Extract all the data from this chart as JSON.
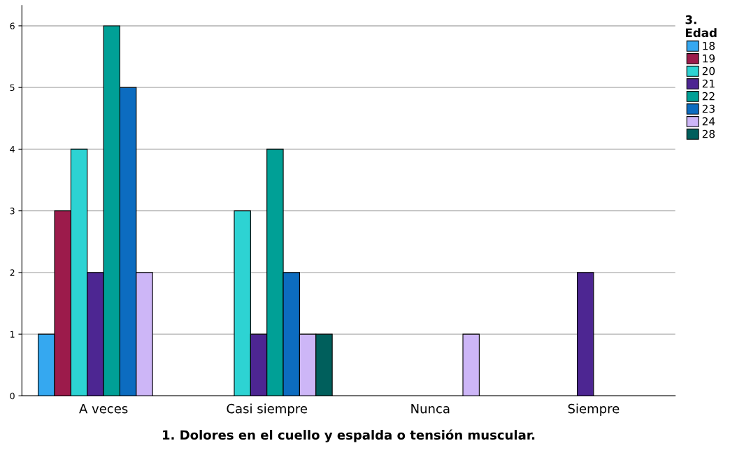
{
  "chart_data": {
    "type": "bar",
    "xlabel": "1. Dolores en el cuello y espalda o tensión muscular.",
    "legend_title": "3.\nEdad",
    "categories": [
      "A veces",
      "Casi siempre",
      "Nunca",
      "Siempre"
    ],
    "series": [
      {
        "name": "18",
        "color": "#35a8f0",
        "values": [
          1,
          null,
          null,
          null
        ]
      },
      {
        "name": "19",
        "color": "#9c1b4b",
        "values": [
          3,
          null,
          null,
          null
        ]
      },
      {
        "name": "20",
        "color": "#2dd3d3",
        "values": [
          4,
          3,
          null,
          null
        ]
      },
      {
        "name": "21",
        "color": "#4d2692",
        "values": [
          2,
          1,
          null,
          2
        ]
      },
      {
        "name": "22",
        "color": "#00a096",
        "values": [
          6,
          4,
          null,
          null
        ]
      },
      {
        "name": "23",
        "color": "#0c6cc0",
        "values": [
          5,
          2,
          null,
          null
        ]
      },
      {
        "name": "24",
        "color": "#cdb6f7",
        "values": [
          2,
          1,
          1,
          null
        ]
      },
      {
        "name": "28",
        "color": "#005f5c",
        "values": [
          null,
          1,
          null,
          null
        ]
      }
    ],
    "ylim": [
      0,
      6.33
    ],
    "yticks": [
      0,
      1,
      2,
      3,
      4,
      5,
      6
    ],
    "grid": "y",
    "legend": "top right"
  }
}
